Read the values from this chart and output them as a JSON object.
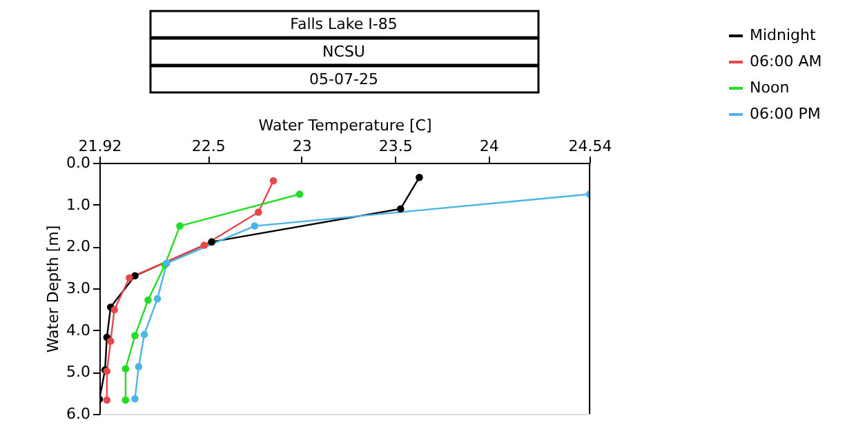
{
  "chart_data": {
    "type": "line",
    "title": "Falls Lake I-85",
    "subtitle": "NCSU",
    "annotations": [
      "05-07-25"
    ],
    "xlabel": "Water Temperature [C]",
    "ylabel": "Water Depth [m]",
    "xlim": [
      21.92,
      24.54
    ],
    "xticks": [
      21.92,
      22.5,
      23,
      23.5,
      24,
      24.54
    ],
    "ylim": [
      6,
      0
    ],
    "yticks": [
      {
        "value": 0,
        "label": "0.0"
      },
      {
        "value": 1,
        "label": "1.0"
      },
      {
        "value": 2,
        "label": "2.0"
      },
      {
        "value": 3,
        "label": "3.0"
      },
      {
        "value": 4,
        "label": "4.0"
      },
      {
        "value": 5,
        "label": "5.0"
      },
      {
        "value": 6,
        "label": "6.0"
      }
    ],
    "grid": false,
    "legend": "top right",
    "marker": "circle",
    "line_style": "solid",
    "series": [
      {
        "name": "Midnight",
        "color": "#000000",
        "x": [
          23.63,
          23.53,
          22.52,
          22.11,
          21.98,
          21.96,
          21.95,
          21.92
        ],
        "values": [
          0.35,
          1.1,
          1.89,
          2.7,
          3.45,
          4.17,
          4.95,
          5.65
        ]
      },
      {
        "name": "06:00 AM",
        "color": "#e8474a",
        "x": [
          22.85,
          22.77,
          22.48,
          22.08,
          22.0,
          21.98,
          21.96,
          21.96
        ],
        "values": [
          0.43,
          1.18,
          1.97,
          2.75,
          3.51,
          4.26,
          4.98,
          5.67
        ]
      },
      {
        "name": "Noon",
        "color": "#22dd22",
        "x": [
          22.99,
          22.35,
          22.27,
          22.18,
          22.11,
          22.06,
          22.06
        ],
        "values": [
          0.75,
          1.51,
          2.44,
          3.28,
          4.13,
          4.92,
          5.67
        ]
      },
      {
        "name": "06:00 PM",
        "color": "#4cb5e8",
        "x": [
          24.54,
          22.75,
          22.28,
          22.23,
          22.16,
          22.13,
          22.11
        ],
        "values": [
          0.75,
          1.51,
          2.4,
          3.25,
          4.1,
          4.87,
          5.64
        ]
      }
    ]
  }
}
